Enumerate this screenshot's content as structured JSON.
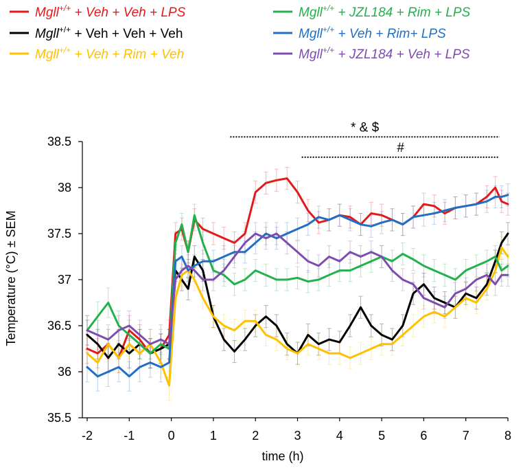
{
  "chart_data": {
    "type": "line",
    "xlabel": "time (h)",
    "ylabel": "Temperature (°C) ± SEM",
    "xlim": [
      -2,
      8
    ],
    "ylim": [
      35.5,
      38.5
    ],
    "x_ticks": [
      "-2",
      "-1",
      "0",
      "1",
      "2",
      "3",
      "4",
      "5",
      "6",
      "7",
      "8"
    ],
    "y_ticks": [
      "35.5",
      "36",
      "36.5",
      "37",
      "37.5",
      "38",
      "38.5"
    ],
    "grid": false,
    "legend_position": "top",
    "annotations": [
      {
        "text": "* & $",
        "x_start": 1.4,
        "x_end": 7.8,
        "y": 38.55
      },
      {
        "text": "#",
        "x_start": 3.1,
        "x_end": 7.8,
        "y": 38.33
      }
    ],
    "series": [
      {
        "name": "Mgll+/+ + Veh + Veh + LPS",
        "gene": "Mgll",
        "sup": "+/+",
        "rest": " + Veh + Veh + LPS",
        "color": "#e31a1c",
        "x": [
          -2,
          -1.75,
          -1.5,
          -1.25,
          -1,
          -0.75,
          -0.5,
          -0.25,
          -0.05,
          0.1,
          0.25,
          0.4,
          0.55,
          0.75,
          1,
          1.25,
          1.5,
          1.75,
          2,
          2.25,
          2.5,
          2.75,
          3,
          3.25,
          3.5,
          3.75,
          4,
          4.25,
          4.5,
          4.75,
          5,
          5.25,
          5.5,
          5.75,
          6,
          6.25,
          6.5,
          6.75,
          7,
          7.25,
          7.5,
          7.7,
          7.85,
          8
        ],
        "values": [
          36.25,
          36.2,
          36.3,
          36.15,
          36.45,
          36.35,
          36.2,
          36.25,
          36.4,
          37.5,
          37.55,
          37.3,
          37.65,
          37.55,
          37.5,
          37.45,
          37.4,
          37.5,
          37.95,
          38.05,
          38.08,
          38.1,
          37.95,
          37.75,
          37.62,
          37.65,
          37.7,
          37.68,
          37.6,
          37.72,
          37.7,
          37.65,
          37.6,
          37.68,
          37.82,
          37.8,
          37.72,
          37.78,
          37.8,
          37.82,
          37.9,
          38,
          37.85,
          37.82
        ]
      },
      {
        "name": "Mgll+/+ + Veh + Veh + Veh",
        "gene": "Mgll",
        "sup": "+/+",
        "rest": " + Veh + Veh + Veh",
        "color": "#000000",
        "x": [
          -2,
          -1.75,
          -1.5,
          -1.25,
          -1,
          -0.75,
          -0.5,
          -0.25,
          -0.05,
          0.1,
          0.25,
          0.4,
          0.55,
          0.75,
          1,
          1.25,
          1.5,
          1.75,
          2,
          2.25,
          2.5,
          2.75,
          3,
          3.25,
          3.5,
          3.75,
          4,
          4.25,
          4.5,
          4.75,
          5,
          5.25,
          5.5,
          5.75,
          6,
          6.25,
          6.5,
          6.75,
          7,
          7.25,
          7.5,
          7.7,
          7.85,
          8
        ],
        "values": [
          36.4,
          36.3,
          36.15,
          36.3,
          36.2,
          36.3,
          36.2,
          36.25,
          36.3,
          37.1,
          37.0,
          36.9,
          37.25,
          37.1,
          36.6,
          36.35,
          36.22,
          36.35,
          36.5,
          36.6,
          36.5,
          36.3,
          36.2,
          36.4,
          36.3,
          36.35,
          36.32,
          36.5,
          36.7,
          36.5,
          36.4,
          36.35,
          36.5,
          36.85,
          36.95,
          36.8,
          36.75,
          36.7,
          36.85,
          36.8,
          36.95,
          37.2,
          37.4,
          37.5
        ]
      },
      {
        "name": "Mgll+/+ + Veh + Rim + Veh",
        "gene": "Mgll",
        "sup": "+/+",
        "rest": " + Veh + Rim + Veh",
        "color": "#ffc000",
        "x": [
          -2,
          -1.75,
          -1.5,
          -1.25,
          -1,
          -0.75,
          -0.5,
          -0.25,
          -0.05,
          0.1,
          0.25,
          0.4,
          0.55,
          0.75,
          1,
          1.25,
          1.5,
          1.75,
          2,
          2.25,
          2.5,
          2.75,
          3,
          3.25,
          3.5,
          3.75,
          4,
          4.25,
          4.5,
          4.75,
          5,
          5.25,
          5.5,
          5.75,
          6,
          6.25,
          6.5,
          6.75,
          7,
          7.25,
          7.5,
          7.7,
          7.85,
          8
        ],
        "values": [
          36.2,
          36.1,
          36.3,
          36.15,
          36.3,
          36.2,
          36.3,
          36.1,
          35.85,
          36.8,
          37.05,
          37.1,
          37.0,
          36.8,
          36.6,
          36.5,
          36.45,
          36.55,
          36.55,
          36.4,
          36.35,
          36.25,
          36.2,
          36.3,
          36.25,
          36.2,
          36.2,
          36.15,
          36.2,
          36.25,
          36.3,
          36.3,
          36.4,
          36.5,
          36.6,
          36.65,
          36.6,
          36.7,
          36.8,
          36.75,
          36.9,
          37.1,
          37.35,
          37.25
        ]
      },
      {
        "name": "Mgll+/+ + JZL184 + Rim + LPS",
        "gene": "Mgll",
        "sup": "+/+",
        "rest": " + JZL184 + Rim + LPS",
        "color": "#22b14c",
        "x": [
          -2,
          -1.75,
          -1.5,
          -1.25,
          -1,
          -0.75,
          -0.5,
          -0.25,
          -0.05,
          0.1,
          0.25,
          0.4,
          0.55,
          0.75,
          1,
          1.25,
          1.5,
          1.75,
          2,
          2.25,
          2.5,
          2.75,
          3,
          3.25,
          3.5,
          3.75,
          4,
          4.25,
          4.5,
          4.75,
          5,
          5.25,
          5.5,
          5.75,
          6,
          6.25,
          6.5,
          6.75,
          7,
          7.25,
          7.5,
          7.7,
          7.85,
          8
        ],
        "values": [
          36.45,
          36.6,
          36.75,
          36.5,
          36.4,
          36.3,
          36.2,
          36.3,
          36.25,
          37.4,
          37.6,
          37.3,
          37.7,
          37.4,
          37.1,
          37.05,
          36.95,
          37.0,
          37.1,
          37.05,
          37.0,
          37.0,
          37.02,
          36.98,
          37.0,
          37.05,
          37.1,
          37.1,
          37.15,
          37.2,
          37.25,
          37.2,
          37.28,
          37.22,
          37.15,
          37.1,
          37.05,
          37.0,
          37.1,
          37.15,
          37.2,
          37.25,
          37.1,
          37.15
        ]
      },
      {
        "name": "Mgll+/+ + Veh + Rim+ LPS",
        "gene": "Mgll",
        "sup": "+/+",
        "rest": " + Veh + Rim+ LPS",
        "color": "#1f6fc5",
        "x": [
          -2,
          -1.75,
          -1.5,
          -1.25,
          -1,
          -0.75,
          -0.5,
          -0.25,
          -0.05,
          0.1,
          0.25,
          0.4,
          0.55,
          0.75,
          1,
          1.25,
          1.5,
          1.75,
          2,
          2.25,
          2.5,
          2.75,
          3,
          3.25,
          3.5,
          3.75,
          4,
          4.25,
          4.5,
          4.75,
          5,
          5.25,
          5.5,
          5.75,
          6,
          6.25,
          6.5,
          6.75,
          7,
          7.25,
          7.5,
          7.7,
          7.85,
          8
        ],
        "values": [
          36.05,
          35.95,
          36.0,
          36.05,
          35.95,
          36.05,
          36.1,
          36.05,
          36.1,
          37.2,
          37.25,
          37.1,
          37.15,
          37.2,
          37.2,
          37.25,
          37.3,
          37.3,
          37.4,
          37.5,
          37.45,
          37.5,
          37.55,
          37.6,
          37.68,
          37.65,
          37.7,
          37.65,
          37.6,
          37.58,
          37.62,
          37.65,
          37.6,
          37.68,
          37.7,
          37.72,
          37.75,
          37.78,
          37.8,
          37.82,
          37.85,
          37.9,
          37.9,
          37.92
        ]
      },
      {
        "name": "Mgll+/+ + JZL184 + Veh + LPS",
        "gene": "Mgll",
        "sup": "+/+",
        "rest": " + JZL184 + Veh + LPS",
        "color": "#7e4bb0",
        "x": [
          -2,
          -1.75,
          -1.5,
          -1.25,
          -1,
          -0.75,
          -0.5,
          -0.25,
          -0.05,
          0.1,
          0.25,
          0.4,
          0.55,
          0.75,
          1,
          1.25,
          1.5,
          1.75,
          2,
          2.25,
          2.5,
          2.75,
          3,
          3.25,
          3.5,
          3.75,
          4,
          4.25,
          4.5,
          4.75,
          5,
          5.25,
          5.5,
          5.75,
          6,
          6.25,
          6.5,
          6.75,
          7,
          7.25,
          7.5,
          7.7,
          7.85,
          8
        ],
        "values": [
          36.45,
          36.4,
          36.35,
          36.45,
          36.5,
          36.4,
          36.3,
          36.35,
          36.3,
          37.0,
          37.1,
          37.15,
          37.1,
          37.0,
          37.0,
          37.1,
          37.25,
          37.4,
          37.5,
          37.45,
          37.5,
          37.4,
          37.3,
          37.2,
          37.15,
          37.25,
          37.2,
          37.3,
          37.25,
          37.3,
          37.25,
          37.1,
          37.0,
          36.95,
          36.8,
          36.75,
          36.7,
          36.85,
          36.9,
          37.0,
          37.05,
          36.95,
          37.05,
          37.05
        ]
      }
    ]
  }
}
